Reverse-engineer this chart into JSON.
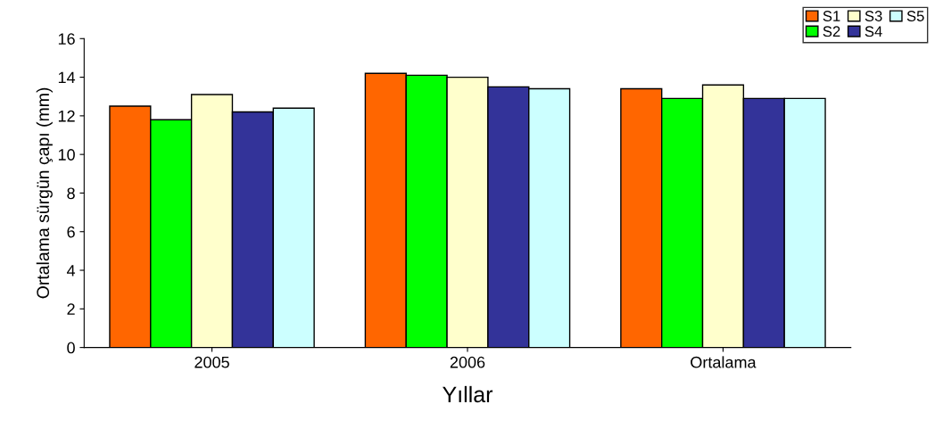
{
  "chart_data": {
    "type": "bar",
    "xlabel": "Yıllar",
    "ylabel": "Ortalama sürgün çapı (mm)",
    "categories": [
      "2005",
      "2006",
      "Ortalama"
    ],
    "series": [
      {
        "name": "S1",
        "color": "#ff6600",
        "values": [
          12.5,
          14.2,
          13.4
        ]
      },
      {
        "name": "S2",
        "color": "#00ff00",
        "values": [
          11.8,
          14.1,
          12.9
        ]
      },
      {
        "name": "S3",
        "color": "#ffffcc",
        "values": [
          13.1,
          14.0,
          13.6
        ]
      },
      {
        "name": "S4",
        "color": "#333399",
        "values": [
          12.2,
          13.5,
          12.9
        ]
      },
      {
        "name": "S5",
        "color": "#ccffff",
        "values": [
          12.4,
          13.4,
          12.9
        ]
      }
    ],
    "ylim": [
      0,
      16
    ],
    "yticks": [
      0,
      2,
      4,
      6,
      8,
      10,
      12,
      14,
      16
    ],
    "grid": false,
    "legend": "top right"
  }
}
